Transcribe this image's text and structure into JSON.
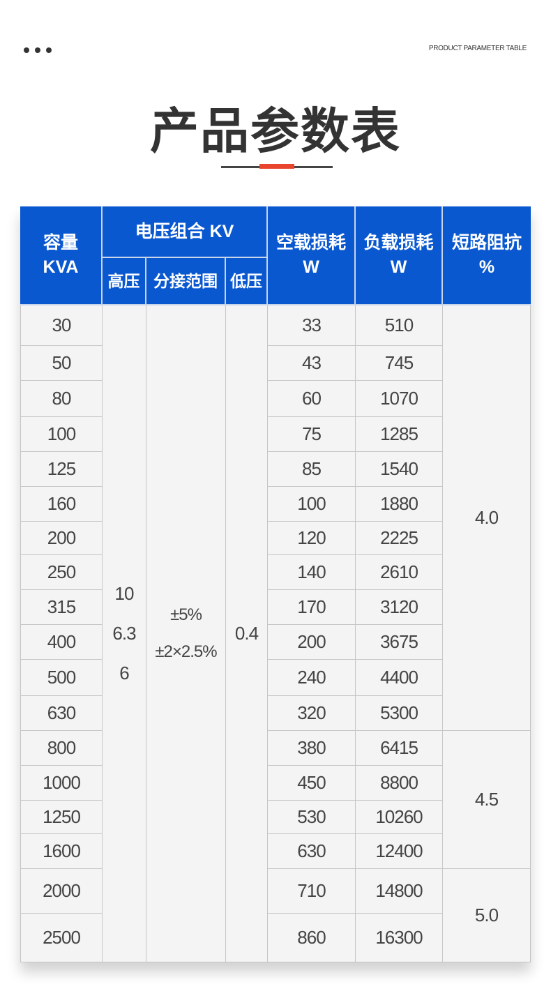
{
  "header": {
    "english_label": "PRODUCT PARAMETER TABLE",
    "title": "产品参数表",
    "accent_color": "#e8452c"
  },
  "table": {
    "header_color": "#0a58d0",
    "headers": {
      "capacity": "容量\nKVA",
      "voltage_group": "电压组合 KV",
      "high_voltage": "高压",
      "tap_range": "分接范围",
      "low_voltage": "低压",
      "no_load_loss": "空载损耗\nW",
      "load_loss": "负载损耗\nW",
      "impedance": "短路阻抗\n%"
    },
    "high_voltage_values": "10\n6.3\n6",
    "tap_range_values": "±5%\n±2×2.5%",
    "low_voltage_value": "0.4",
    "rows": [
      {
        "kva": "30",
        "no_load": "33",
        "load": "510"
      },
      {
        "kva": "50",
        "no_load": "43",
        "load": "745"
      },
      {
        "kva": "80",
        "no_load": "60",
        "load": "1070"
      },
      {
        "kva": "100",
        "no_load": "75",
        "load": "1285"
      },
      {
        "kva": "125",
        "no_load": "85",
        "load": "1540"
      },
      {
        "kva": "160",
        "no_load": "100",
        "load": "1880"
      },
      {
        "kva": "200",
        "no_load": "120",
        "load": "2225"
      },
      {
        "kva": "250",
        "no_load": "140",
        "load": "2610"
      },
      {
        "kva": "315",
        "no_load": "170",
        "load": "3120"
      },
      {
        "kva": "400",
        "no_load": "200",
        "load": "3675"
      },
      {
        "kva": "500",
        "no_load": "240",
        "load": "4400"
      },
      {
        "kva": "630",
        "no_load": "320",
        "load": "5300"
      },
      {
        "kva": "800",
        "no_load": "380",
        "load": "6415"
      },
      {
        "kva": "1000",
        "no_load": "450",
        "load": "8800"
      },
      {
        "kva": "1250",
        "no_load": "530",
        "load": "10260"
      },
      {
        "kva": "1600",
        "no_load": "630",
        "load": "12400"
      },
      {
        "kva": "2000",
        "no_load": "710",
        "load": "14800"
      },
      {
        "kva": "2500",
        "no_load": "860",
        "load": "16300"
      }
    ],
    "impedance_groups": [
      {
        "value": "4.0",
        "rows": 12
      },
      {
        "value": "4.5",
        "rows": 4
      },
      {
        "value": "5.0",
        "rows": 2
      }
    ]
  }
}
